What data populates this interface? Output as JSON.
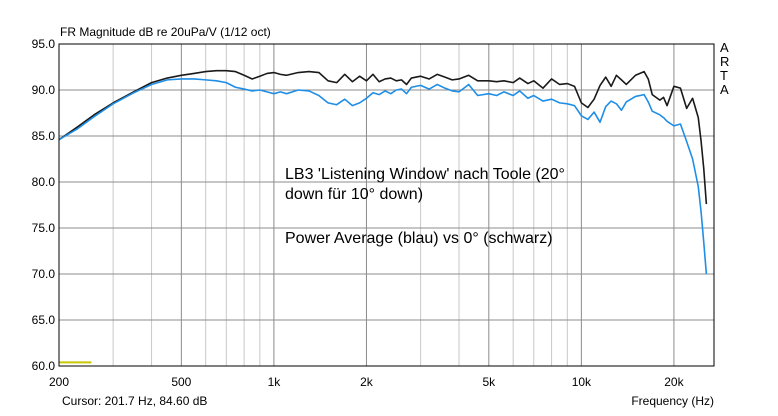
{
  "chart_data": {
    "type": "line",
    "title": "FR Magnitude dB re 20uPa/V (1/12 oct)",
    "xlabel": "Frequency (Hz)",
    "ylabel": "",
    "x_scale": "log",
    "xlim": [
      200,
      27000
    ],
    "ylim": [
      60,
      95
    ],
    "y_ticks": [
      "95.0",
      "90.0",
      "85.0",
      "80.0",
      "75.0",
      "70.0",
      "65.0",
      "60.0"
    ],
    "x_ticks": [
      {
        "value": 200,
        "label": "200"
      },
      {
        "value": 500,
        "label": "500"
      },
      {
        "value": 1000,
        "label": "1k"
      },
      {
        "value": 2000,
        "label": "2k"
      },
      {
        "value": 5000,
        "label": "5k"
      },
      {
        "value": 10000,
        "label": "10k"
      },
      {
        "value": 20000,
        "label": "20k"
      }
    ],
    "grid": true,
    "series": [
      {
        "color": "#1a1a1a",
        "x": [
          200,
          230,
          260,
          300,
          350,
          400,
          450,
          500,
          550,
          600,
          650,
          700,
          750,
          800,
          850,
          900,
          950,
          1000,
          1050,
          1100,
          1200,
          1300,
          1400,
          1500,
          1600,
          1700,
          1800,
          1900,
          2000,
          2100,
          2200,
          2300,
          2400,
          2500,
          2600,
          2700,
          2800,
          3000,
          3200,
          3400,
          3600,
          3800,
          4000,
          4300,
          4600,
          5000,
          5300,
          5600,
          6000,
          6300,
          6700,
          7000,
          7500,
          8000,
          8500,
          9000,
          9500,
          10000,
          10500,
          11000,
          11500,
          12000,
          12500,
          13000,
          13500,
          14000,
          15000,
          16000,
          16500,
          17000,
          18000,
          18500,
          19000,
          20000,
          21000,
          22000,
          23000,
          24000,
          24500,
          25000,
          25500
        ],
        "values": [
          84.6,
          86.0,
          87.3,
          88.6,
          89.8,
          90.8,
          91.3,
          91.6,
          91.8,
          92.0,
          92.1,
          92.1,
          92.0,
          91.6,
          91.2,
          91.5,
          91.8,
          91.9,
          91.7,
          91.6,
          91.9,
          92.0,
          91.9,
          91.0,
          90.8,
          91.7,
          90.9,
          91.5,
          91.0,
          91.7,
          90.9,
          91.2,
          91.3,
          91.0,
          91.1,
          90.6,
          91.3,
          91.5,
          91.2,
          91.7,
          91.4,
          91.1,
          91.2,
          91.6,
          91.0,
          91.0,
          90.9,
          91.0,
          90.8,
          91.3,
          90.7,
          91.0,
          90.2,
          91.2,
          90.6,
          90.7,
          90.4,
          88.6,
          88.1,
          89.0,
          90.5,
          91.4,
          90.4,
          91.6,
          91.1,
          90.6,
          91.6,
          92.0,
          91.2,
          89.5,
          88.9,
          89.2,
          88.3,
          90.4,
          90.2,
          88.0,
          89.1,
          87.0,
          84.5,
          81.5,
          77.6
        ]
      },
      {
        "color": "#1f8ee6",
        "x": [
          200,
          230,
          260,
          300,
          350,
          400,
          450,
          500,
          550,
          600,
          650,
          700,
          750,
          800,
          850,
          900,
          950,
          1000,
          1050,
          1100,
          1200,
          1300,
          1400,
          1500,
          1600,
          1700,
          1800,
          1900,
          2000,
          2100,
          2200,
          2300,
          2400,
          2500,
          2600,
          2700,
          2800,
          3000,
          3200,
          3400,
          3600,
          3800,
          4000,
          4300,
          4600,
          5000,
          5300,
          5600,
          6000,
          6300,
          6700,
          7000,
          7500,
          8000,
          8500,
          9000,
          9500,
          10000,
          10500,
          11000,
          11500,
          12000,
          12500,
          13000,
          13500,
          14000,
          15000,
          16000,
          16500,
          17000,
          18000,
          18500,
          19000,
          20000,
          21000,
          22000,
          23000,
          24000,
          24500,
          25000,
          25500
        ],
        "values": [
          84.6,
          85.8,
          87.1,
          88.5,
          89.7,
          90.6,
          91.1,
          91.2,
          91.2,
          91.1,
          91.0,
          90.8,
          90.3,
          90.1,
          89.9,
          90.0,
          89.8,
          89.6,
          89.8,
          89.6,
          90.0,
          89.9,
          89.4,
          88.6,
          88.4,
          89.0,
          88.3,
          88.6,
          89.1,
          89.7,
          89.5,
          89.9,
          89.6,
          90.0,
          90.1,
          89.6,
          90.3,
          90.5,
          90.1,
          90.6,
          90.2,
          89.9,
          89.8,
          90.6,
          89.4,
          89.6,
          89.4,
          89.8,
          89.4,
          89.9,
          89.1,
          89.4,
          88.8,
          89.0,
          88.6,
          88.5,
          88.3,
          87.2,
          86.8,
          87.6,
          86.5,
          88.2,
          88.8,
          88.5,
          87.8,
          88.7,
          89.3,
          89.5,
          88.7,
          87.7,
          87.3,
          87.0,
          86.6,
          86.1,
          86.3,
          84.4,
          82.5,
          79.5,
          76.8,
          73.5,
          70.0
        ]
      }
    ],
    "annotations": [
      "LB3 'Listening Window' nach Toole (20°",
      "down für 10° down)",
      "Power Average (blau) vs 0° (schwarz)"
    ],
    "marker": {
      "x": [
        200,
        255
      ],
      "y": 60.4,
      "color": "#c8c800"
    }
  },
  "status": {
    "cursor_text": "Cursor: 201.7 Hz, 84.60 dB",
    "frequency_label": "Frequency (Hz)"
  },
  "side_letters": [
    "A",
    "R",
    "T",
    "A"
  ]
}
